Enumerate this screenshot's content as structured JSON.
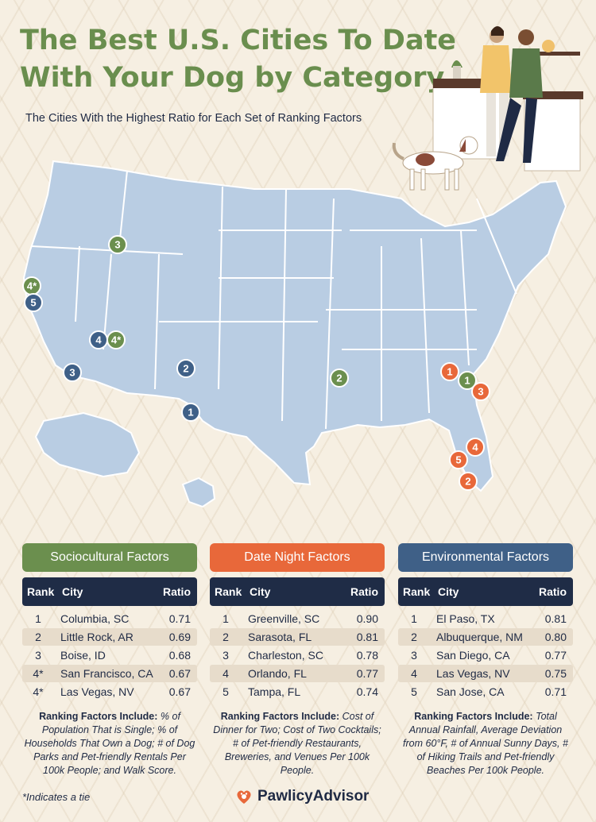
{
  "header": {
    "title_line1": "The Best U.S. Cities To Date",
    "title_line2": "With Your Dog by Category",
    "subtitle": "The Cities With the Highest Ratio for Each Set of Ranking Factors"
  },
  "colors": {
    "sociocultural": "#6b8f4e",
    "date_night": "#e8683a",
    "environmental": "#3f6087",
    "map_fill": "#b9cde3",
    "header_row": "#1f2c46"
  },
  "map_markers": [
    {
      "label": "3",
      "category": "sociocultural",
      "city": "Boise, ID"
    },
    {
      "label": "4*",
      "category": "sociocultural",
      "city": "San Francisco, CA"
    },
    {
      "label": "5",
      "category": "environmental",
      "city": "San Jose, CA"
    },
    {
      "label": "4",
      "category": "environmental",
      "city": "Las Vegas, NV"
    },
    {
      "label": "4*",
      "category": "sociocultural",
      "city": "Las Vegas, NV"
    },
    {
      "label": "3",
      "category": "environmental",
      "city": "San Diego, CA"
    },
    {
      "label": "2",
      "category": "environmental",
      "city": "Albuquerque, NM"
    },
    {
      "label": "1",
      "category": "environmental",
      "city": "El Paso, TX"
    },
    {
      "label": "2",
      "category": "sociocultural",
      "city": "Little Rock, AR"
    },
    {
      "label": "1",
      "category": "date_night",
      "city": "Greenville, SC"
    },
    {
      "label": "1",
      "category": "sociocultural",
      "city": "Columbia, SC"
    },
    {
      "label": "3",
      "category": "date_night",
      "city": "Charleston, SC"
    },
    {
      "label": "4",
      "category": "date_night",
      "city": "Orlando, FL"
    },
    {
      "label": "5",
      "category": "date_night",
      "city": "Tampa, FL"
    },
    {
      "label": "2",
      "category": "date_night",
      "city": "Sarasota, FL"
    }
  ],
  "chart_data": {
    "type": "table",
    "columns": [
      "Rank",
      "City",
      "Ratio"
    ],
    "categories": [
      {
        "name": "Sociocultural Factors",
        "rows": [
          {
            "rank": "1",
            "city": "Columbia, SC",
            "ratio": 0.71
          },
          {
            "rank": "2",
            "city": "Little Rock, AR",
            "ratio": 0.69
          },
          {
            "rank": "3",
            "city": "Boise, ID",
            "ratio": 0.68
          },
          {
            "rank": "4*",
            "city": "San Francisco, CA",
            "ratio": 0.67
          },
          {
            "rank": "4*",
            "city": "Las Vegas, NV",
            "ratio": 0.67
          }
        ],
        "notes_label": "Ranking Factors Include:",
        "notes": "% of Population That is Single; % of Households That Own a Dog; # of Dog Parks and Pet-friendly Rentals Per 100k People; and Walk Score."
      },
      {
        "name": "Date Night Factors",
        "rows": [
          {
            "rank": "1",
            "city": "Greenville, SC",
            "ratio": 0.9
          },
          {
            "rank": "2",
            "city": "Sarasota, FL",
            "ratio": 0.81
          },
          {
            "rank": "3",
            "city": "Charleston, SC",
            "ratio": 0.78
          },
          {
            "rank": "4",
            "city": "Orlando, FL",
            "ratio": 0.77
          },
          {
            "rank": "5",
            "city": "Tampa, FL",
            "ratio": 0.74
          }
        ],
        "notes_label": "Ranking Factors Include:",
        "notes": "Cost of Dinner for Two; Cost of Two Cocktails; # of Pet-friendly Restaurants, Breweries, and Venues Per 100k People."
      },
      {
        "name": "Environmental Factors",
        "rows": [
          {
            "rank": "1",
            "city": "El Paso, TX",
            "ratio": 0.81
          },
          {
            "rank": "2",
            "city": "Albuquerque, NM",
            "ratio": 0.8
          },
          {
            "rank": "3",
            "city": "San Diego, CA",
            "ratio": 0.77
          },
          {
            "rank": "4",
            "city": "Las Vegas, NV",
            "ratio": 0.75
          },
          {
            "rank": "5",
            "city": "San Jose, CA",
            "ratio": 0.71
          }
        ],
        "notes_label": "Ranking Factors Include:",
        "notes": "Total Annual Rainfall, Average Deviation from 60°F, # of Annual Sunny Days, # of Hiking Trails and Pet-friendly Beaches Per 100k People."
      }
    ]
  },
  "footer": {
    "footnote": "*Indicates a tie",
    "brand": "PawlicyAdvisor"
  }
}
